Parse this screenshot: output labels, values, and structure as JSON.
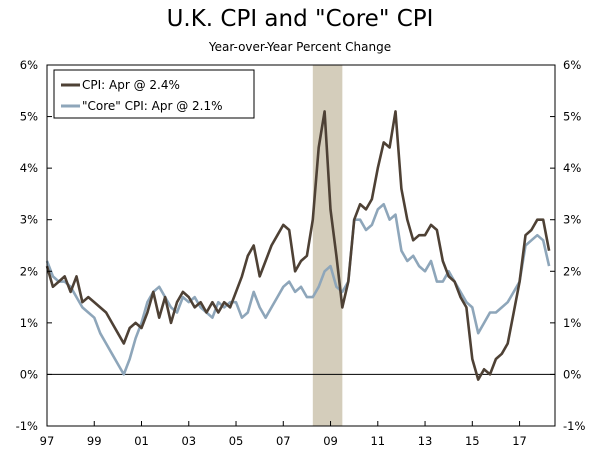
{
  "chart_data": {
    "type": "line",
    "title": "U.K. CPI and \"Core\" CPI",
    "subtitle": "Year-over-Year Percent Change",
    "ylim": [
      -1,
      6
    ],
    "xlim": [
      1997.0,
      2018.5
    ],
    "grid": false,
    "legend_position": "top-left",
    "y_ticks": [
      6,
      5,
      4,
      3,
      2,
      1,
      0,
      -1
    ],
    "y_tick_labels": [
      "6%",
      "5%",
      "4%",
      "3%",
      "2%",
      "1%",
      "0%",
      "-1%"
    ],
    "x_ticks": [
      1997,
      1999,
      2001,
      2003,
      2005,
      2007,
      2009,
      2011,
      2013,
      2015,
      2017
    ],
    "x_tick_labels": [
      "97",
      "99",
      "01",
      "03",
      "05",
      "07",
      "09",
      "11",
      "13",
      "15",
      "17"
    ],
    "recession": {
      "start": 2008.25,
      "end": 2009.5,
      "color": "#d4cdbb"
    },
    "series": [
      {
        "name": "CPI: Apr @ 2.4%",
        "color": "#4e4135",
        "x": [
          1997.0,
          1997.25,
          1997.5,
          1997.75,
          1998.0,
          1998.25,
          1998.5,
          1998.75,
          1999.0,
          1999.25,
          1999.5,
          1999.75,
          2000.0,
          2000.25,
          2000.5,
          2000.75,
          2001.0,
          2001.25,
          2001.5,
          2001.75,
          2002.0,
          2002.25,
          2002.5,
          2002.75,
          2003.0,
          2003.25,
          2003.5,
          2003.75,
          2004.0,
          2004.25,
          2004.5,
          2004.75,
          2005.0,
          2005.25,
          2005.5,
          2005.75,
          2006.0,
          2006.25,
          2006.5,
          2006.75,
          2007.0,
          2007.25,
          2007.5,
          2007.75,
          2008.0,
          2008.25,
          2008.5,
          2008.75,
          2009.0,
          2009.25,
          2009.5,
          2009.75,
          2010.0,
          2010.25,
          2010.5,
          2010.75,
          2011.0,
          2011.25,
          2011.5,
          2011.75,
          2012.0,
          2012.25,
          2012.5,
          2012.75,
          2013.0,
          2013.25,
          2013.5,
          2013.75,
          2014.0,
          2014.25,
          2014.5,
          2014.75,
          2015.0,
          2015.25,
          2015.5,
          2015.75,
          2016.0,
          2016.25,
          2016.5,
          2016.75,
          2017.0,
          2017.25,
          2017.5,
          2017.75,
          2018.0,
          2018.25
        ],
        "values": [
          2.1,
          1.7,
          1.8,
          1.9,
          1.6,
          1.9,
          1.4,
          1.5,
          1.4,
          1.3,
          1.2,
          1.0,
          0.8,
          0.6,
          0.9,
          1.0,
          0.9,
          1.2,
          1.6,
          1.1,
          1.5,
          1.0,
          1.4,
          1.6,
          1.5,
          1.3,
          1.4,
          1.2,
          1.4,
          1.2,
          1.4,
          1.3,
          1.6,
          1.9,
          2.3,
          2.5,
          1.9,
          2.2,
          2.5,
          2.7,
          2.9,
          2.8,
          2.0,
          2.2,
          2.3,
          3.0,
          4.4,
          5.1,
          3.2,
          2.3,
          1.3,
          1.8,
          3.0,
          3.3,
          3.2,
          3.4,
          4.0,
          4.5,
          4.4,
          5.1,
          3.6,
          3.0,
          2.6,
          2.7,
          2.7,
          2.9,
          2.8,
          2.2,
          1.9,
          1.8,
          1.5,
          1.3,
          0.3,
          -0.1,
          0.1,
          0.0,
          0.3,
          0.4,
          0.6,
          1.2,
          1.8,
          2.7,
          2.8,
          3.0,
          3.0,
          2.4
        ]
      },
      {
        "name": "\"Core\" CPI: Apr @ 2.1%",
        "color": "#8ea6ba",
        "x": [
          1997.0,
          1997.25,
          1997.5,
          1997.75,
          1998.0,
          1998.25,
          1998.5,
          1998.75,
          1999.0,
          1999.25,
          1999.5,
          1999.75,
          2000.0,
          2000.25,
          2000.5,
          2000.75,
          2001.0,
          2001.25,
          2001.5,
          2001.75,
          2002.0,
          2002.25,
          2002.5,
          2002.75,
          2003.0,
          2003.25,
          2003.5,
          2003.75,
          2004.0,
          2004.25,
          2004.5,
          2004.75,
          2005.0,
          2005.25,
          2005.5,
          2005.75,
          2006.0,
          2006.25,
          2006.5,
          2006.75,
          2007.0,
          2007.25,
          2007.5,
          2007.75,
          2008.0,
          2008.25,
          2008.5,
          2008.75,
          2009.0,
          2009.25,
          2009.5,
          2009.75,
          2010.0,
          2010.25,
          2010.5,
          2010.75,
          2011.0,
          2011.25,
          2011.5,
          2011.75,
          2012.0,
          2012.25,
          2012.5,
          2012.75,
          2013.0,
          2013.25,
          2013.5,
          2013.75,
          2014.0,
          2014.25,
          2014.5,
          2014.75,
          2015.0,
          2015.25,
          2015.5,
          2015.75,
          2016.0,
          2016.25,
          2016.5,
          2016.75,
          2017.0,
          2017.25,
          2017.5,
          2017.75,
          2018.0,
          2018.25
        ],
        "values": [
          2.2,
          1.9,
          1.8,
          1.8,
          1.7,
          1.5,
          1.3,
          1.2,
          1.1,
          0.8,
          0.6,
          0.4,
          0.2,
          0.0,
          0.3,
          0.7,
          1.0,
          1.4,
          1.6,
          1.7,
          1.5,
          1.3,
          1.2,
          1.5,
          1.4,
          1.5,
          1.3,
          1.2,
          1.1,
          1.4,
          1.3,
          1.4,
          1.4,
          1.1,
          1.2,
          1.6,
          1.3,
          1.1,
          1.3,
          1.5,
          1.7,
          1.8,
          1.6,
          1.7,
          1.5,
          1.5,
          1.7,
          2.0,
          2.1,
          1.7,
          1.6,
          1.8,
          3.0,
          3.0,
          2.8,
          2.9,
          3.2,
          3.3,
          3.0,
          3.1,
          2.4,
          2.2,
          2.3,
          2.1,
          2.0,
          2.2,
          1.8,
          1.8,
          2.0,
          1.8,
          1.6,
          1.4,
          1.3,
          0.8,
          1.0,
          1.2,
          1.2,
          1.3,
          1.4,
          1.6,
          1.8,
          2.5,
          2.6,
          2.7,
          2.6,
          2.1
        ]
      }
    ]
  }
}
